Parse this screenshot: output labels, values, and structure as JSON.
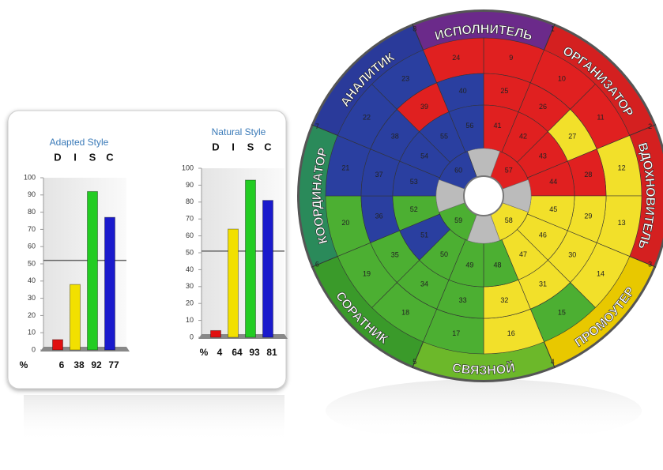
{
  "chart_data": [
    {
      "type": "bar",
      "title": "Adapted Style",
      "categories": [
        "D",
        "I",
        "S",
        "C"
      ],
      "values": [
        6,
        38,
        92,
        77
      ],
      "colors": [
        "#e01010",
        "#f2e000",
        "#22cc22",
        "#1a1acc"
      ],
      "ylim": [
        0,
        100
      ],
      "yticks": [
        0,
        10,
        20,
        30,
        40,
        50,
        60,
        70,
        80,
        90,
        100
      ],
      "x_label": "%",
      "reference_line": 52
    },
    {
      "type": "bar",
      "title": "Natural Style",
      "categories": [
        "D",
        "I",
        "S",
        "C"
      ],
      "values": [
        4,
        64,
        93,
        81
      ],
      "colors": [
        "#e01010",
        "#f2e000",
        "#22cc22",
        "#1a1acc"
      ],
      "ylim": [
        0,
        100
      ],
      "yticks": [
        0,
        10,
        20,
        30,
        40,
        50,
        60,
        70,
        80,
        90,
        100
      ],
      "x_label": "%",
      "reference_line": 51
    }
  ],
  "wheel": {
    "sector_labels": [
      "ИСПОЛНИТЕЛЬ",
      "ОРГАНИЗАТОР",
      "ВДОХНОВИТЕЛЬ",
      "ПРОМОУТЕР",
      "СВЯЗНОЙ",
      "СОРАТНИК",
      "КООРДИНАТОР",
      "АНАЛИТИК"
    ],
    "boundary_numbers": [
      1,
      2,
      3,
      4,
      5,
      6,
      7,
      8
    ],
    "cell_numbers": [
      [
        9,
        10,
        11,
        12,
        13,
        14,
        15,
        16,
        17,
        18,
        19,
        20,
        21,
        22,
        23,
        24
      ],
      [
        25,
        26,
        27,
        28,
        29,
        30,
        31,
        32,
        33,
        34,
        35,
        36,
        37,
        38,
        39,
        40
      ],
      [
        41,
        42,
        43,
        44,
        45,
        46,
        47,
        48,
        49,
        50,
        51,
        52,
        53,
        54,
        55,
        56
      ],
      [
        57,
        58,
        59,
        60
      ]
    ]
  }
}
